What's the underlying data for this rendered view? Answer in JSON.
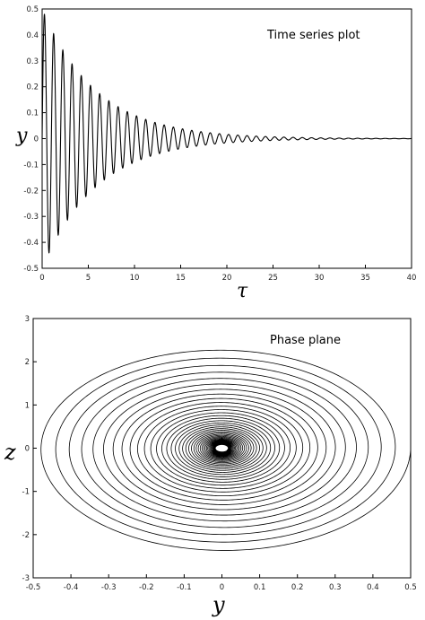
{
  "chart_data": [
    {
      "type": "line",
      "annotation": "Time series plot",
      "xlabel": "τ",
      "ylabel": "y",
      "xlim": [
        0,
        40
      ],
      "ylim": [
        -0.5,
        0.5
      ],
      "xticks": [
        "0",
        "5",
        "10",
        "15",
        "20",
        "25",
        "30",
        "35",
        "40"
      ],
      "yticks": [
        "0.5",
        "0.4",
        "0.3",
        "0.2",
        "0.1",
        "0",
        "-0.1",
        "-0.2",
        "-0.3",
        "-0.4",
        "-0.5"
      ],
      "grid": false,
      "series": [
        {
          "curve": "damped oscillation y = A·e^(-d·τ)·sin(ω·τ)",
          "amplitude": 0.5,
          "decay": 0.17,
          "angular_frequency": 6.3,
          "peaks": [
            {
              "x": 0.2,
              "y": 0.49
            },
            {
              "x": 1.0,
              "y": 0.41
            },
            {
              "x": 2.0,
              "y": 0.33
            },
            {
              "x": 3.0,
              "y": 0.27
            },
            {
              "x": 4.0,
              "y": 0.24
            },
            {
              "x": 5.0,
              "y": 0.21
            },
            {
              "x": 6.0,
              "y": 0.18
            },
            {
              "x": 7.0,
              "y": 0.15
            },
            {
              "x": 8.0,
              "y": 0.13
            },
            {
              "x": 9.0,
              "y": 0.11
            },
            {
              "x": 10.0,
              "y": 0.09
            },
            {
              "x": 12.0,
              "y": 0.07
            },
            {
              "x": 15.0,
              "y": 0.04
            },
            {
              "x": 20.0,
              "y": 0.02
            },
            {
              "x": 25.0,
              "y": 0.01
            },
            {
              "x": 30.0,
              "y": 0.003
            }
          ],
          "troughs": [
            {
              "x": 0.4,
              "y": -0.46
            },
            {
              "x": 1.5,
              "y": -0.37
            }
          ]
        }
      ]
    },
    {
      "type": "line",
      "annotation": "Phase plane",
      "xlabel": "y",
      "ylabel": "z",
      "xlim": [
        -0.5,
        0.5
      ],
      "ylim": [
        -3,
        3
      ],
      "xticks": [
        "-0.5",
        "-0.4",
        "-0.3",
        "-0.2",
        "-0.1",
        "0",
        "0.1",
        "0.2",
        "0.3",
        "0.4",
        "0.5"
      ],
      "yticks": [
        "3",
        "2",
        "1",
        "0",
        "-1",
        "-2",
        "-3"
      ],
      "grid": false,
      "series": [
        {
          "curve": "inward spiral to origin (0, 0)",
          "start": {
            "y": 0.5,
            "z": 0.0
          },
          "outer_z_top": 2.37,
          "outer_z_bottom": -2.65,
          "outer_y_left": -0.47,
          "center": {
            "y": 0,
            "z": 0
          }
        }
      ]
    }
  ]
}
